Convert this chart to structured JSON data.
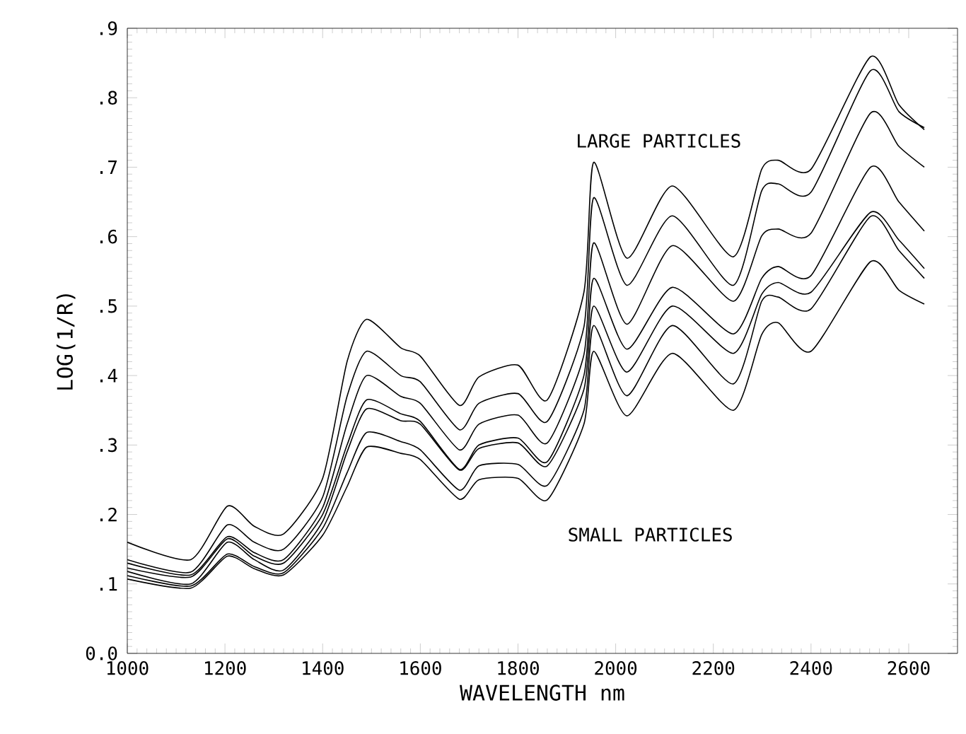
{
  "chart_data": {
    "type": "line",
    "xlabel": "WAVELENGTH nm",
    "ylabel": "LOG(1/R)",
    "x": [
      1000,
      1130,
      1205,
      1260,
      1320,
      1400,
      1450,
      1490,
      1560,
      1600,
      1680,
      1720,
      1800,
      1860,
      1935,
      1955,
      2023,
      2116,
      2241,
      2299,
      2333,
      2400,
      2522,
      2580,
      2632
    ],
    "series": [
      {
        "color": "#000000",
        "values": [
          0.16,
          0.135,
          0.212,
          0.183,
          0.172,
          0.252,
          0.42,
          0.481,
          0.44,
          0.428,
          0.357,
          0.398,
          0.415,
          0.365,
          0.52,
          0.707,
          0.569,
          0.673,
          0.571,
          0.697,
          0.71,
          0.697,
          0.859,
          0.79,
          0.754
        ]
      },
      {
        "color": "#000000",
        "values": [
          0.135,
          0.117,
          0.185,
          0.16,
          0.15,
          0.225,
          0.37,
          0.435,
          0.4,
          0.391,
          0.322,
          0.36,
          0.374,
          0.334,
          0.47,
          0.656,
          0.53,
          0.63,
          0.53,
          0.666,
          0.676,
          0.664,
          0.839,
          0.78,
          0.757
        ]
      },
      {
        "color": "#000000",
        "values": [
          0.13,
          0.113,
          0.168,
          0.145,
          0.135,
          0.21,
          0.33,
          0.4,
          0.37,
          0.36,
          0.293,
          0.33,
          0.343,
          0.303,
          0.43,
          0.591,
          0.474,
          0.587,
          0.507,
          0.601,
          0.611,
          0.605,
          0.778,
          0.73,
          0.7
        ]
      },
      {
        "color": "#000000",
        "values": [
          0.123,
          0.11,
          0.165,
          0.14,
          0.13,
          0.2,
          0.3,
          0.365,
          0.345,
          0.334,
          0.265,
          0.3,
          0.31,
          0.276,
          0.4,
          0.54,
          0.438,
          0.527,
          0.46,
          0.54,
          0.557,
          0.544,
          0.7,
          0.65,
          0.608
        ]
      },
      {
        "color": "#000000",
        "values": [
          0.118,
          0.1,
          0.16,
          0.135,
          0.12,
          0.19,
          0.29,
          0.352,
          0.335,
          0.33,
          0.264,
          0.295,
          0.303,
          0.27,
          0.38,
          0.5,
          0.405,
          0.5,
          0.432,
          0.517,
          0.534,
          0.52,
          0.635,
          0.595,
          0.554
        ]
      },
      {
        "color": "#000000",
        "values": [
          0.112,
          0.097,
          0.143,
          0.125,
          0.116,
          0.18,
          0.26,
          0.318,
          0.305,
          0.293,
          0.235,
          0.27,
          0.272,
          0.242,
          0.35,
          0.472,
          0.371,
          0.472,
          0.388,
          0.507,
          0.513,
          0.496,
          0.629,
          0.58,
          0.54
        ]
      },
      {
        "color": "#000000",
        "values": [
          0.107,
          0.094,
          0.14,
          0.122,
          0.113,
          0.17,
          0.24,
          0.297,
          0.288,
          0.279,
          0.222,
          0.25,
          0.252,
          0.221,
          0.33,
          0.435,
          0.342,
          0.432,
          0.35,
          0.459,
          0.476,
          0.435,
          0.564,
          0.523,
          0.503
        ]
      }
    ],
    "xlim": [
      1000,
      2700
    ],
    "ylim": [
      0,
      0.9
    ],
    "xticks": [
      1000,
      1200,
      1400,
      1600,
      1800,
      2000,
      2200,
      2400,
      2600
    ],
    "yticks": [
      {
        "value": 0,
        "label": "0.0"
      },
      {
        "value": 0.1,
        "label": ".1"
      },
      {
        "value": 0.2,
        "label": ".2"
      },
      {
        "value": 0.3,
        "label": ".3"
      },
      {
        "value": 0.4,
        "label": ".4"
      },
      {
        "value": 0.5,
        "label": ".5"
      },
      {
        "value": 0.6,
        "label": ".6"
      },
      {
        "value": 0.7,
        "label": ".7"
      },
      {
        "value": 0.8,
        "label": ".8"
      },
      {
        "value": 0.9,
        "label": ".9"
      }
    ],
    "annotations": [
      "LARGE PARTICLES",
      "SMALL PARTICLES"
    ],
    "grid": false,
    "line_style": "solid"
  }
}
